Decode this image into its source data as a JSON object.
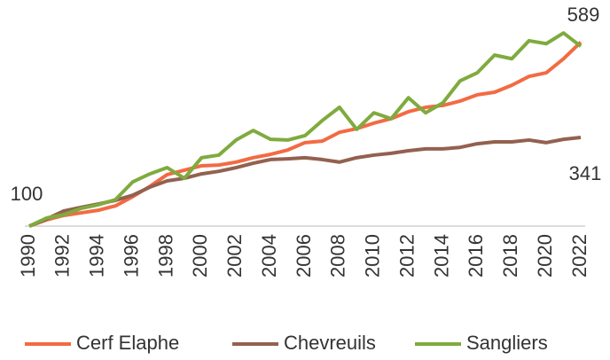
{
  "chart_data": {
    "type": "line",
    "x": [
      1990,
      1991,
      1992,
      1993,
      1994,
      1995,
      1996,
      1997,
      1998,
      1999,
      2000,
      2001,
      2002,
      2003,
      2004,
      2005,
      2006,
      2007,
      2008,
      2009,
      2010,
      2011,
      2012,
      2013,
      2014,
      2015,
      2016,
      2017,
      2018,
      2019,
      2020,
      2021,
      2022
    ],
    "xlim": [
      1990,
      2022
    ],
    "xticks": [
      1990,
      1992,
      1994,
      1996,
      1998,
      2000,
      2002,
      2004,
      2006,
      2008,
      2010,
      2012,
      2014,
      2016,
      2018,
      2020,
      2022
    ],
    "ylim": [
      100,
      640
    ],
    "series": [
      {
        "name": "Cerf Elaphe",
        "color": "#f26b43",
        "values": [
          100,
          117,
          129,
          136,
          143,
          155,
          180,
          208,
          240,
          252,
          264,
          266,
          274,
          286,
          295,
          307,
          327,
          331,
          355,
          365,
          380,
          392,
          411,
          423,
          428,
          440,
          457,
          464,
          483,
          507,
          517,
          555,
          600
        ]
      },
      {
        "name": "Chevreuils",
        "color": "#93614f",
        "values": [
          100,
          119,
          141,
          151,
          160,
          170,
          184,
          206,
          223,
          230,
          242,
          249,
          259,
          271,
          281,
          283,
          286,
          281,
          274,
          286,
          293,
          298,
          305,
          310,
          310,
          314,
          324,
          329,
          329,
          334,
          327,
          336,
          341
        ]
      },
      {
        "name": "Sangliers",
        "color": "#7fab3e",
        "values": [
          100,
          122,
          131,
          148,
          158,
          172,
          220,
          242,
          259,
          230,
          286,
          293,
          334,
          360,
          336,
          334,
          346,
          387,
          423,
          363,
          408,
          392,
          449,
          408,
          435,
          495,
          517,
          565,
          555,
          604,
          596,
          625,
          589
        ]
      }
    ]
  }
}
